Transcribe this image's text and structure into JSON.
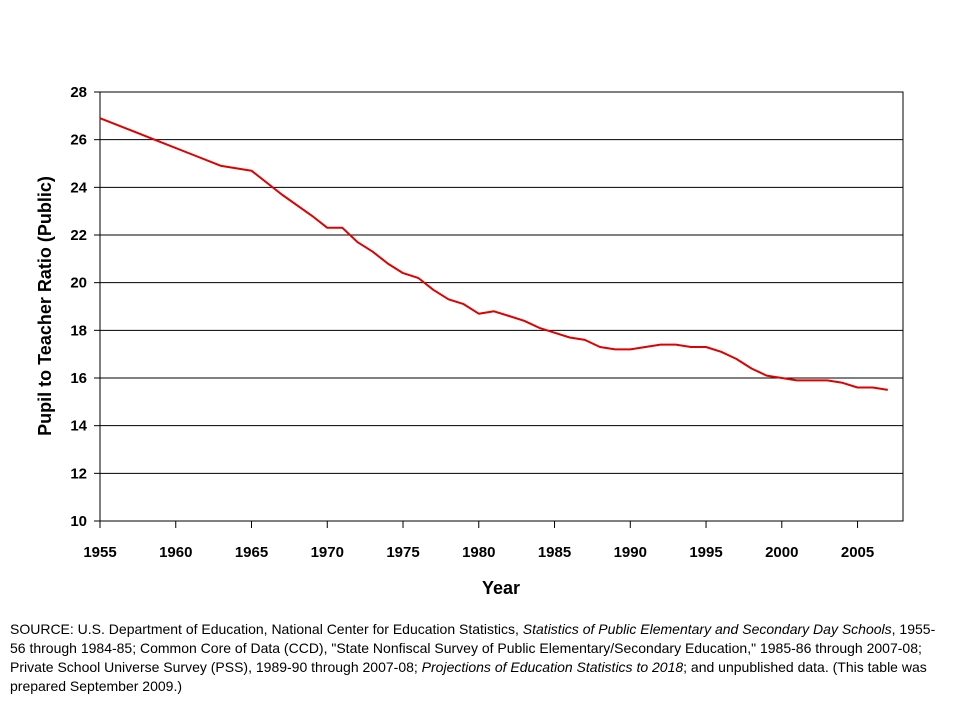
{
  "chart_data": {
    "type": "line",
    "title": "",
    "xlabel": "Year",
    "ylabel": "Pupil to Teacher Ratio (Public)",
    "xlim": [
      1955,
      2008
    ],
    "ylim": [
      10,
      28
    ],
    "x_ticks": [
      "1955",
      "1960",
      "1965",
      "1970",
      "1975",
      "1980",
      "1985",
      "1990",
      "1995",
      "2000",
      "2005"
    ],
    "y_ticks": [
      "10",
      "12",
      "14",
      "16",
      "18",
      "20",
      "22",
      "24",
      "26",
      "28"
    ],
    "grid": "horizontal",
    "legend": "none",
    "series": [
      {
        "name": "Pupil to Teacher Ratio (Public)",
        "color": "#e00000",
        "x": [
          1955,
          1957,
          1959,
          1961,
          1963,
          1965,
          1967,
          1969,
          1970,
          1971,
          1972,
          1973,
          1974,
          1975,
          1976,
          1977,
          1978,
          1979,
          1980,
          1981,
          1982,
          1983,
          1984,
          1985,
          1986,
          1987,
          1988,
          1989,
          1990,
          1991,
          1992,
          1993,
          1994,
          1995,
          1996,
          1997,
          1998,
          1999,
          2000,
          2001,
          2002,
          2003,
          2004,
          2005,
          2006,
          2007
        ],
        "values": [
          26.9,
          26.4,
          25.9,
          25.4,
          24.9,
          24.7,
          23.7,
          22.8,
          22.3,
          22.3,
          21.7,
          21.3,
          20.8,
          20.4,
          20.2,
          19.7,
          19.3,
          19.1,
          18.7,
          18.8,
          18.6,
          18.4,
          18.1,
          17.9,
          17.7,
          17.6,
          17.3,
          17.2,
          17.2,
          17.3,
          17.4,
          17.4,
          17.3,
          17.3,
          17.1,
          16.8,
          16.4,
          16.1,
          16.0,
          15.9,
          15.9,
          15.9,
          15.8,
          15.6,
          15.6,
          15.5
        ]
      }
    ]
  },
  "source_note": {
    "p1": "SOURCE: U.S. Department of Education, National Center for Education Statistics, ",
    "i1": "Statistics of Public Elementary and Secondary Day Schools",
    "p2": ", 1955-56 through 1984-85; Common Core of Data (CCD), \"State Nonfiscal Survey of Public Elementary/Secondary Education,\" 1985-86 through 2007-08; Private School Universe Survey (PSS), 1989-90 through 2007-08; ",
    "i2": "Projections of Education Statistics to 2018",
    "p3": "; and unpublished data. (This table was prepared September 2009.)"
  }
}
